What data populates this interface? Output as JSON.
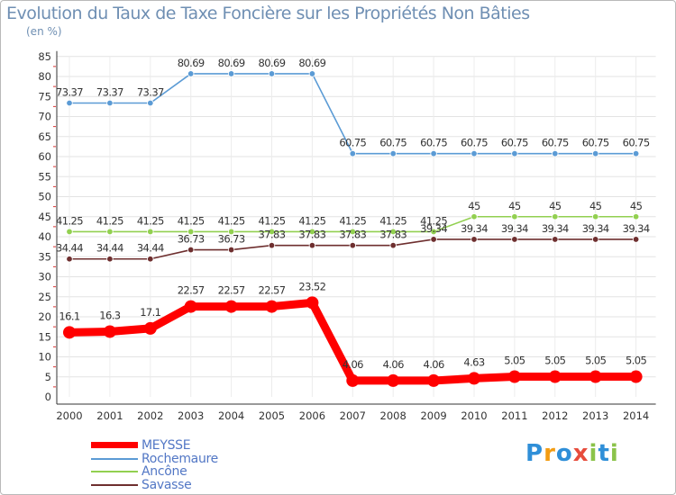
{
  "chart_data": {
    "type": "line",
    "title": "Evolution du Taux de Taxe Foncière sur les Propriétés Non Bâties",
    "ylabel": "(en %)",
    "xlabel": "",
    "ylim": [
      0,
      85
    ],
    "yticks": [
      0,
      5,
      10,
      15,
      20,
      25,
      30,
      35,
      40,
      45,
      50,
      55,
      60,
      65,
      70,
      75,
      80,
      85
    ],
    "categories": [
      "2000",
      "2001",
      "2002",
      "2003",
      "2004",
      "2005",
      "2006",
      "2007",
      "2008",
      "2009",
      "2010",
      "2011",
      "2012",
      "2013",
      "2014"
    ],
    "series": [
      {
        "name": "Rochemaure",
        "color": "#5b9bd5",
        "values": [
          73.37,
          73.37,
          73.37,
          80.69,
          80.69,
          80.69,
          80.69,
          60.75,
          60.75,
          60.75,
          60.75,
          60.75,
          60.75,
          60.75,
          60.75
        ],
        "labels": [
          "73.37",
          "73.37",
          "73.37",
          "80.69",
          "80.69",
          "80.69",
          "80.69",
          "60.75",
          "60.75",
          "60.75",
          "60.75",
          "60.75",
          "60.75",
          "60.75",
          "60.75"
        ]
      },
      {
        "name": "Ancône",
        "color": "#92d050",
        "values": [
          41.25,
          41.25,
          41.25,
          41.25,
          41.25,
          41.25,
          41.25,
          41.25,
          41.25,
          41.25,
          45,
          45,
          45,
          45,
          45
        ],
        "labels": [
          "41.25",
          "41.25",
          "41.25",
          "41.25",
          "41.25",
          "41.25",
          "41.25",
          "41.25",
          "41.25",
          "41.25",
          "45",
          "45",
          "45",
          "45",
          "45"
        ]
      },
      {
        "name": "Savasse",
        "color": "#6e2f2f",
        "values": [
          34.44,
          34.44,
          34.44,
          36.73,
          36.73,
          37.83,
          37.83,
          37.83,
          37.83,
          39.34,
          39.34,
          39.34,
          39.34,
          39.34,
          39.34
        ],
        "labels": [
          "34.44",
          "34.44",
          "34.44",
          "36.73",
          "36.73",
          "37.83",
          "37.83",
          "37.83",
          "37.83",
          "39.34",
          "39.34",
          "39.34",
          "39.34",
          "39.34",
          "39.34"
        ]
      },
      {
        "name": "MEYSSE",
        "color": "#ff0000",
        "values": [
          16.1,
          16.3,
          17.1,
          22.57,
          22.57,
          22.57,
          23.52,
          4.06,
          4.06,
          4.06,
          4.63,
          5.05,
          5.05,
          5.05,
          5.05
        ],
        "labels": [
          "16.1",
          "16.3",
          "17.1",
          "22.57",
          "22.57",
          "22.57",
          "23.52",
          "4.06",
          "4.06",
          "4.06",
          "4.63",
          "5.05",
          "5.05",
          "5.05",
          "5.05"
        ]
      }
    ],
    "legend_order": [
      "MEYSSE",
      "Rochemaure",
      "Ancône",
      "Savasse"
    ]
  },
  "logo": {
    "letters": [
      "P",
      "r",
      "o",
      "x",
      "i",
      "t",
      "i"
    ],
    "colors": [
      "#2f8fd8",
      "#f39c12",
      "#2f8fd8",
      "#e74c3c",
      "#8bc34a",
      "#2f8fd8",
      "#8bc34a"
    ]
  }
}
